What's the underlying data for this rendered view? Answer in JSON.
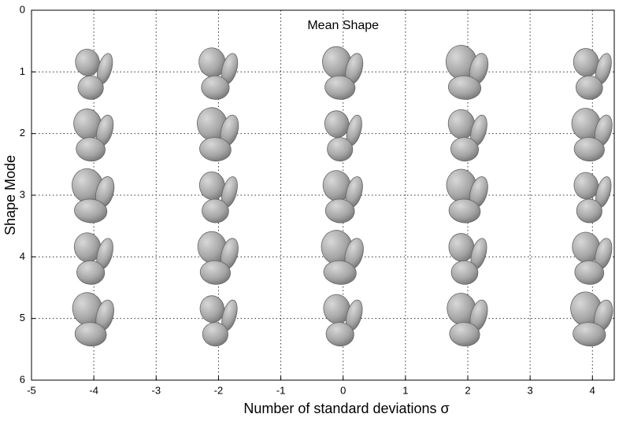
{
  "chart_data": {
    "type": "scatter",
    "annotation": "Mean Shape",
    "xlabel": "Number of standard deviations σ",
    "ylabel": "Shape Mode",
    "x": [
      -4,
      -2,
      0,
      2,
      4,
      -4,
      -2,
      0,
      2,
      4,
      -4,
      -2,
      0,
      2,
      4,
      -4,
      -2,
      0,
      2,
      4,
      -4,
      -2,
      0,
      2,
      4
    ],
    "values": [
      1,
      1,
      1,
      1,
      1,
      2,
      2,
      2,
      2,
      2,
      3,
      3,
      3,
      3,
      3,
      4,
      4,
      4,
      4,
      4,
      5,
      5,
      5,
      5,
      5
    ],
    "color": "#9a9a9a",
    "xlim": [
      -5,
      4.35
    ],
    "ylim": [
      0,
      6
    ],
    "y_reversed": true,
    "xticks": [
      -5,
      -4,
      -3,
      -2,
      -1,
      0,
      1,
      2,
      3,
      4
    ],
    "yticks": [
      0,
      1,
      2,
      3,
      4,
      5,
      6
    ],
    "grid": true
  }
}
